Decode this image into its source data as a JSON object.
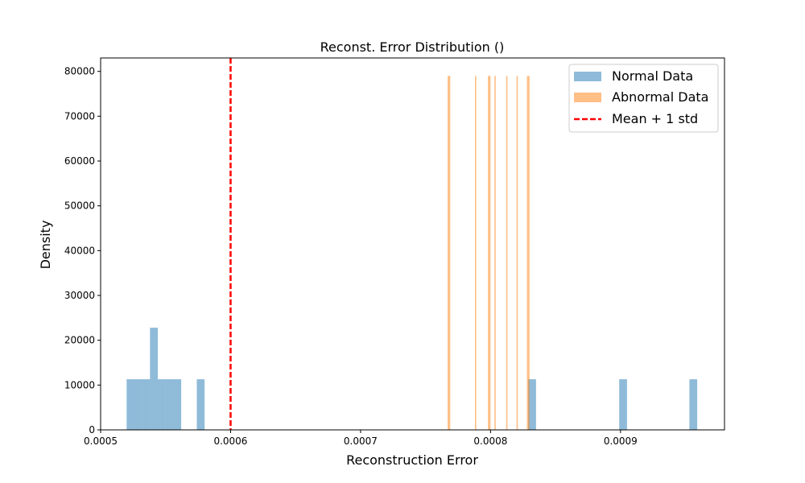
{
  "chart_data": {
    "type": "histogram",
    "title": "Reconst. Error Distribution ()",
    "xlabel": "Reconstruction Error",
    "ylabel": "Density",
    "xlim": [
      0.0005,
      0.00098
    ],
    "ylim": [
      0,
      83000
    ],
    "xticks": [
      0.0005,
      0.0006,
      0.0007,
      0.0008,
      0.0009
    ],
    "xtick_labels": [
      "0.0005",
      "0.0006",
      "0.0007",
      "0.0008",
      "0.0009"
    ],
    "yticks": [
      0,
      10000,
      20000,
      30000,
      40000,
      50000,
      60000,
      70000,
      80000
    ],
    "ytick_labels": [
      "0",
      "10000",
      "20000",
      "30000",
      "40000",
      "50000",
      "60000",
      "70000",
      "80000"
    ],
    "series": [
      {
        "name": "Normal Data",
        "color": "#1f77b4",
        "opacity": 0.5,
        "bins": [
          {
            "x0": 0.00052,
            "x1": 0.000526,
            "value": 11300
          },
          {
            "x0": 0.000526,
            "x1": 0.000532,
            "value": 11300
          },
          {
            "x0": 0.000532,
            "x1": 0.000538,
            "value": 11300
          },
          {
            "x0": 0.000538,
            "x1": 0.000544,
            "value": 22800
          },
          {
            "x0": 0.000544,
            "x1": 0.00055,
            "value": 11300
          },
          {
            "x0": 0.00055,
            "x1": 0.000556,
            "value": 11300
          },
          {
            "x0": 0.000556,
            "x1": 0.000562,
            "value": 11300
          },
          {
            "x0": 0.000574,
            "x1": 0.00058,
            "value": 11300
          },
          {
            "x0": 0.000829,
            "x1": 0.000835,
            "value": 11300
          },
          {
            "x0": 0.000899,
            "x1": 0.000905,
            "value": 11300
          },
          {
            "x0": 0.000953,
            "x1": 0.000959,
            "value": 11300
          }
        ]
      },
      {
        "name": "Abnormal Data",
        "color": "#ff7f0e",
        "opacity": 0.5,
        "bins": [
          {
            "x0": 0.000767,
            "x1": 0.000769,
            "value": 79000
          },
          {
            "x0": 0.000788,
            "x1": 0.000789,
            "value": 79000
          },
          {
            "x0": 0.000798,
            "x1": 0.0008,
            "value": 79000
          },
          {
            "x0": 0.000803,
            "x1": 0.000804,
            "value": 79000
          },
          {
            "x0": 0.000812,
            "x1": 0.000813,
            "value": 79000
          },
          {
            "x0": 0.00082,
            "x1": 0.000821,
            "value": 79000
          },
          {
            "x0": 0.000828,
            "x1": 0.00083,
            "value": 79000
          }
        ]
      }
    ],
    "reference_lines": [
      {
        "name": "Mean + 1 std",
        "x": 0.0006,
        "color": "#ff0000",
        "style": "dashed"
      }
    ],
    "legend": {
      "position": "top-right",
      "entries": [
        "Normal Data",
        "Abnormal Data",
        "Mean + 1 std"
      ]
    },
    "grid": false
  }
}
